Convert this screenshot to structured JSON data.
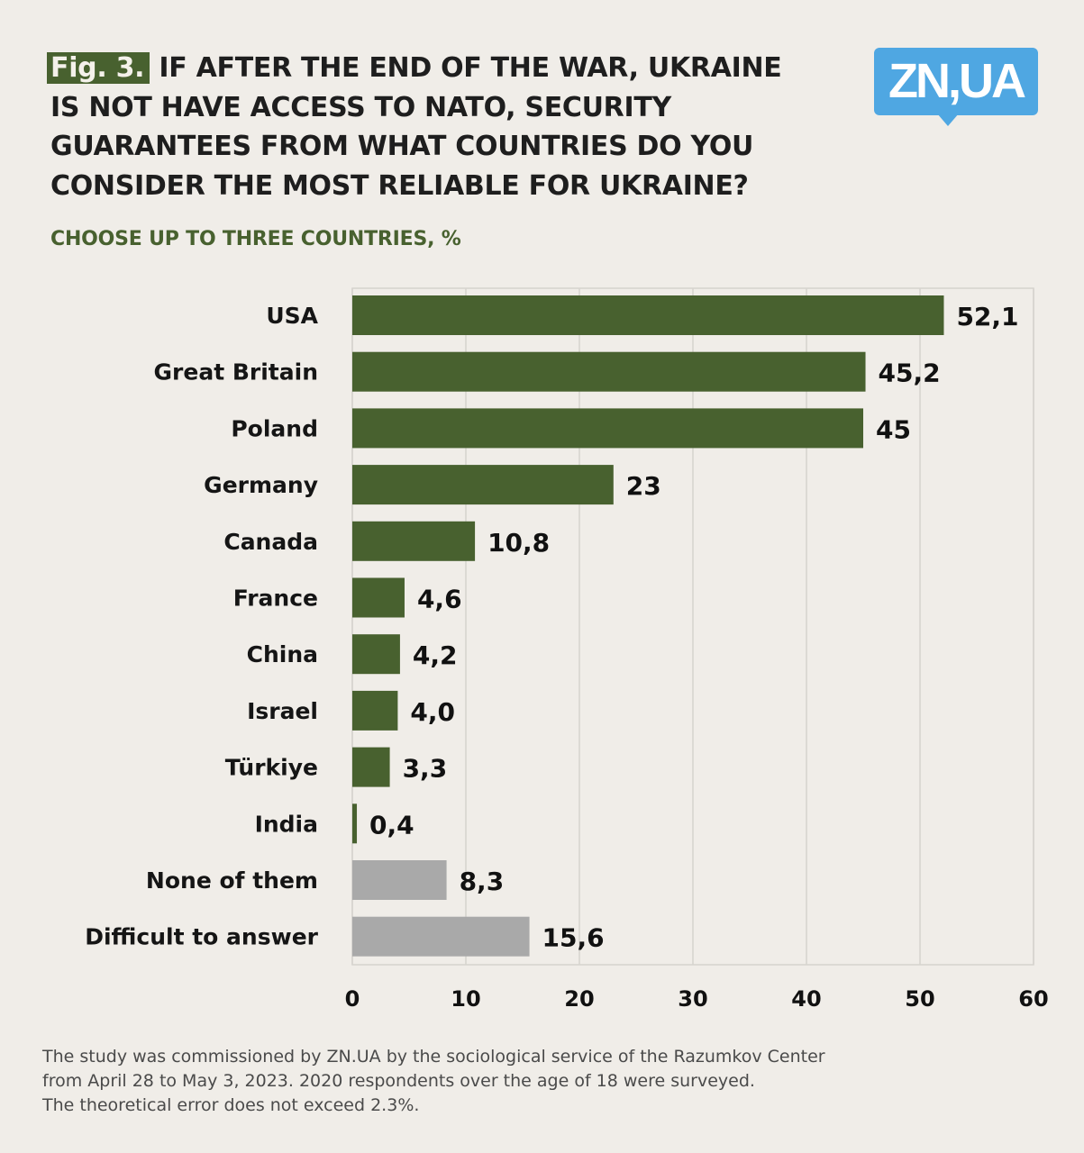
{
  "header": {
    "fig_label": "Fig. 3.",
    "title_lines": [
      "IF AFTER THE END OF THE WAR, UKRAINE",
      "IS NOT HAVE ACCESS TO NATO, SECURITY",
      "GUARANTEES FROM WHAT COUNTRIES DO YOU",
      "CONSIDER THE MOST RELIABLE FOR UKRAINE?"
    ],
    "subtitle": "CHOOSE UP TO THREE COUNTRIES, %",
    "logo_text": "ZN,UA"
  },
  "colors": {
    "background": "#f0ede8",
    "primary_bar": "#48612f",
    "secondary_bar": "#a9a9a9",
    "logo": "#4fa7e2",
    "grid": "#d6d3ce"
  },
  "chart_data": {
    "type": "bar",
    "orientation": "horizontal",
    "title": "IF AFTER THE END OF THE WAR, UKRAINE IS NOT HAVE ACCESS TO NATO, SECURITY GUARANTEES FROM WHAT COUNTRIES DO YOU CONSIDER THE MOST RELIABLE FOR UKRAINE?",
    "subtitle": "CHOOSE UP TO THREE COUNTRIES, %",
    "xlabel": "",
    "ylabel": "",
    "xlim": [
      0,
      60
    ],
    "ticks": [
      0,
      10,
      20,
      30,
      40,
      50,
      60
    ],
    "tick_labels": [
      "0",
      "10",
      "20",
      "30",
      "40",
      "50",
      "60"
    ],
    "grid": true,
    "categories": [
      "USA",
      "Great Britain",
      "Poland",
      "Germany",
      "Canada",
      "France",
      "China",
      "Israel",
      "Türkiye",
      "India",
      "None of them",
      "Difficult to answer"
    ],
    "values": [
      52.1,
      45.2,
      45,
      23,
      10.8,
      4.6,
      4.2,
      4.0,
      3.3,
      0.4,
      8.3,
      15.6
    ],
    "value_labels": [
      "52,1",
      "45,2",
      "45",
      "23",
      "10,8",
      "4,6",
      "4,2",
      "4,0",
      "3,3",
      "0,4",
      "8,3",
      "15,6"
    ],
    "bar_group": [
      "country",
      "country",
      "country",
      "country",
      "country",
      "country",
      "country",
      "country",
      "country",
      "country",
      "other",
      "other"
    ]
  },
  "footer": {
    "lines": [
      "The study was commissioned by ZN.UA by the sociological service of the Razumkov Center",
      "from April 28 to May 3, 2023. 2020 respondents over the age of 18 were surveyed.",
      "The theoretical error does not exceed 2.3%."
    ]
  }
}
